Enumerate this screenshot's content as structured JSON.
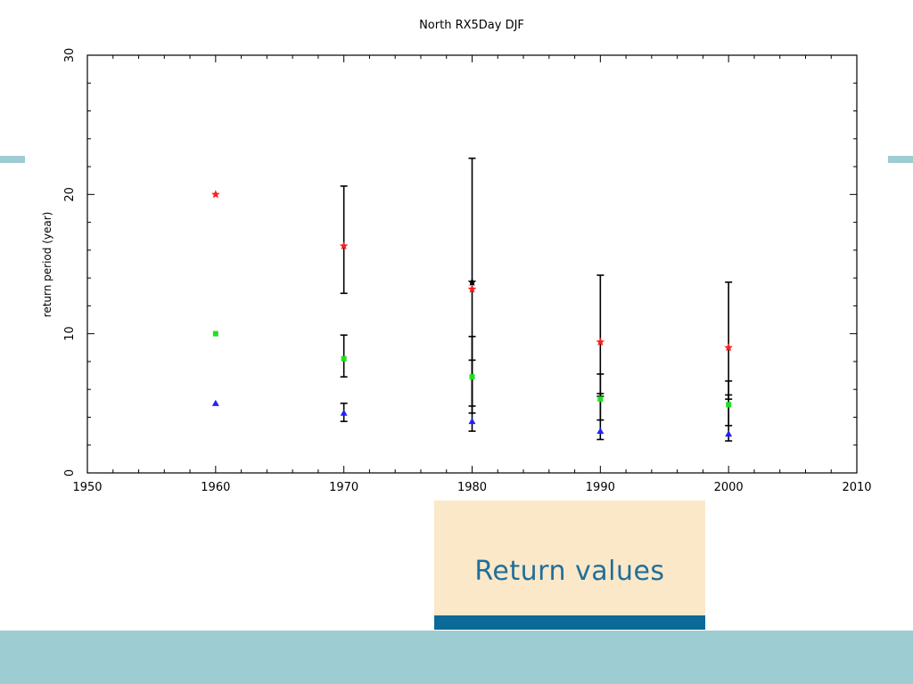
{
  "caption": {
    "label": "Return values"
  },
  "colors": {
    "band": "#9dccd2",
    "caption_bg": "#fbe8c9",
    "caption_text": "#1f6f9b",
    "caption_bar": "#0b6a98"
  },
  "chart_data": {
    "type": "scatter",
    "title": "North RX5Day DJF",
    "xlabel": "",
    "ylabel": "return period (year)",
    "xlim": [
      1950,
      2010
    ],
    "ylim": [
      0,
      30
    ],
    "xticks": [
      1950,
      1960,
      1970,
      1980,
      1990,
      2000,
      2010
    ],
    "yticks": [
      0,
      10,
      20,
      30
    ],
    "grid": false,
    "series": [
      {
        "color": "#ff2020",
        "marker": "star",
        "points": [
          {
            "x": 1960,
            "y": 20
          },
          {
            "x": 1970,
            "y": 16.3,
            "lo": 12.9,
            "hi": 20.6
          },
          {
            "x": 1980,
            "y": 13.2,
            "lo": 4.8,
            "hi": 22.6
          },
          {
            "x": 1990,
            "y": 9.4,
            "lo": 5.5,
            "hi": 14.2
          },
          {
            "x": 2000,
            "y": 9.0,
            "lo": 5.3,
            "hi": 13.7
          }
        ]
      },
      {
        "color": "#20e020",
        "marker": "square",
        "points": [
          {
            "x": 1960,
            "y": 10
          },
          {
            "x": 1970,
            "y": 8.2,
            "lo": 6.9,
            "hi": 9.9
          },
          {
            "x": 1980,
            "y": 6.9,
            "lo": 4.3,
            "hi": 9.8
          },
          {
            "x": 1990,
            "y": 5.3,
            "lo": 3.8,
            "hi": 7.1
          },
          {
            "x": 2000,
            "y": 4.9,
            "lo": 3.4,
            "hi": 6.6
          }
        ]
      },
      {
        "color": "#2020ff",
        "marker": "triangle",
        "points": [
          {
            "x": 1960,
            "y": 5
          },
          {
            "x": 1970,
            "y": 4.3,
            "lo": 3.7,
            "hi": 5.0
          },
          {
            "x": 1980,
            "y": 3.7,
            "lo": 3.0,
            "hi": 8.1
          },
          {
            "x": 1990,
            "y": 3.0,
            "lo": 2.4,
            "hi": 5.7
          },
          {
            "x": 2000,
            "y": 2.8,
            "lo": 2.3,
            "hi": 5.6
          }
        ]
      },
      {
        "color": "#000000",
        "marker": "star",
        "points": [
          {
            "x": 1980,
            "y": 13.7
          }
        ]
      }
    ]
  }
}
